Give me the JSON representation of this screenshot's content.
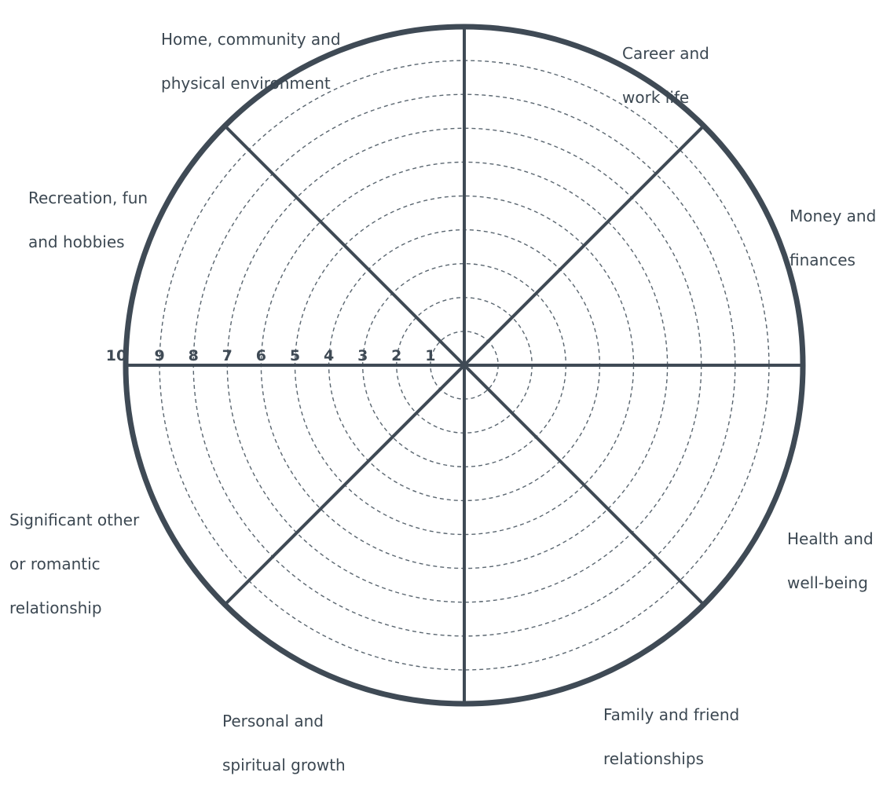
{
  "diagram": {
    "type": "wheel-of-life",
    "scale_labels": [
      "10",
      "9",
      "8",
      "7",
      "6",
      "5",
      "4",
      "3",
      "2",
      "1"
    ],
    "segments": [
      {
        "key": "career",
        "lines": [
          "Career and",
          "work life"
        ]
      },
      {
        "key": "money",
        "lines": [
          "Money and",
          "finances"
        ]
      },
      {
        "key": "health",
        "lines": [
          "Health and",
          "well-being"
        ]
      },
      {
        "key": "family",
        "lines": [
          "Family and friend",
          "relationships"
        ]
      },
      {
        "key": "personal",
        "lines": [
          "Personal and",
          "spiritual growth"
        ]
      },
      {
        "key": "significant",
        "lines": [
          "Significant other",
          "or romantic",
          "relationship"
        ]
      },
      {
        "key": "recreation",
        "lines": [
          "Recreation, fun",
          "and hobbies"
        ]
      },
      {
        "key": "home",
        "lines": [
          "Home, community and",
          "physical environment"
        ]
      }
    ],
    "colors": {
      "ink": "#3f4a55",
      "dashed": "#5a6670",
      "text": "#3c4852"
    }
  }
}
